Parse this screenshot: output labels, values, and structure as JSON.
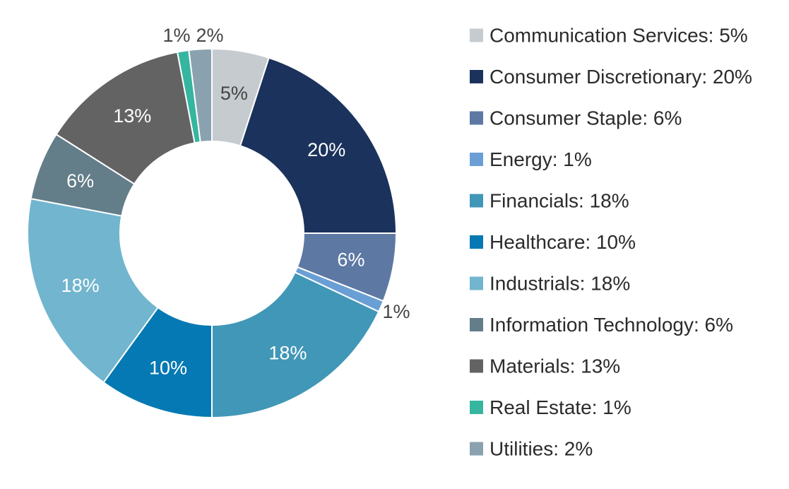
{
  "chart_data": {
    "type": "pie",
    "variant": "donut",
    "legend_position": "right",
    "slices": [
      {
        "name": "Communication Services",
        "value": 5,
        "label": "5%",
        "legend": "Communication Services: 5%",
        "color": "#c5cbcf",
        "label_color": "#444444"
      },
      {
        "name": "Consumer Discretionary",
        "value": 20,
        "label": "20%",
        "legend": "Consumer Discretionary: 20%",
        "color": "#1b325c",
        "label_color": "#ffffff"
      },
      {
        "name": "Consumer Staple",
        "value": 6,
        "label": "6%",
        "legend": "Consumer Staple: 6%",
        "color": "#5d78a3",
        "label_color": "#ffffff"
      },
      {
        "name": "Energy",
        "value": 1,
        "label": "1%",
        "legend": "Energy: 1%",
        "color": "#6a9fd6",
        "label_color": "#444444"
      },
      {
        "name": "Financials",
        "value": 18,
        "label": "18%",
        "legend": "Financials: 18%",
        "color": "#4197b7",
        "label_color": "#ffffff"
      },
      {
        "name": "Healthcare",
        "value": 10,
        "label": "10%",
        "legend": "Healthcare: 10%",
        "color": "#0579b3",
        "label_color": "#ffffff"
      },
      {
        "name": "Industrials",
        "value": 18,
        "label": "18%",
        "legend": "Industrials: 18%",
        "color": "#72b5ce",
        "label_color": "#ffffff"
      },
      {
        "name": "Information Technology",
        "value": 6,
        "label": "6%",
        "legend": "Information Technology: 6%",
        "color": "#637d89",
        "label_color": "#ffffff"
      },
      {
        "name": "Materials",
        "value": 13,
        "label": "13%",
        "legend": "Materials: 13%",
        "color": "#636363",
        "label_color": "#ffffff"
      },
      {
        "name": "Real Estate",
        "value": 1,
        "label": "1%",
        "legend": "Real Estate: 1%",
        "color": "#36b5a0",
        "label_color": "#444444"
      },
      {
        "name": "Utilities",
        "value": 2,
        "label": "2%",
        "legend": "Utilities: 2%",
        "color": "#8aa2b0",
        "label_color": "#444444"
      }
    ]
  }
}
